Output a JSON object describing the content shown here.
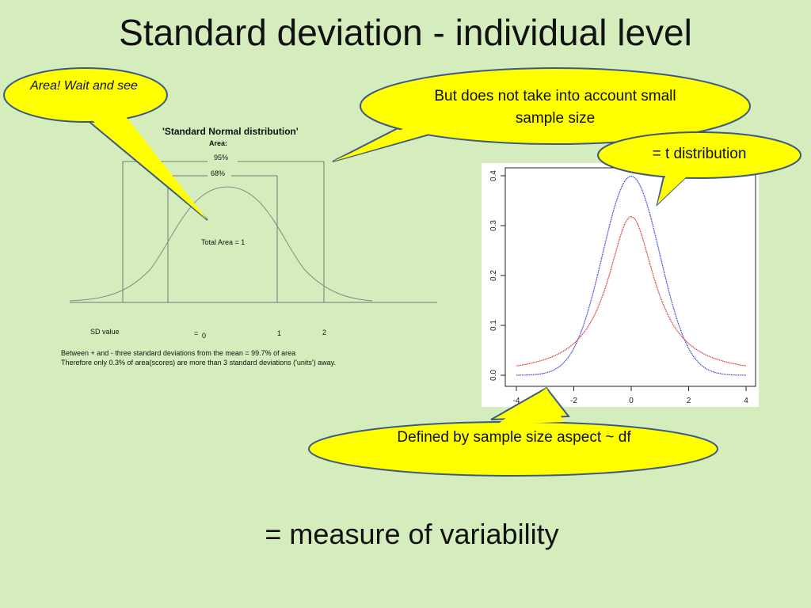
{
  "slide": {
    "title": "Standard deviation - individual level",
    "footer": "= measure of variability"
  },
  "callouts": {
    "area_wait": "Area! Wait and see",
    "small_sample": "But does not take into account small sample size",
    "t_dist": "= t distribution",
    "defined_by": "Defined by sample size aspect ~ df"
  },
  "normal_figure": {
    "title": "'Standard Normal distribution'",
    "area_label": "Area:",
    "pct_95": "95%",
    "pct_68": "68%",
    "total_area": "Total Area = 1",
    "sd_value_label": "SD value",
    "equals": "=",
    "tick_0": "0",
    "tick_1": "1",
    "tick_2": "2",
    "note_line1": "Between + and - three standard deviations from the mean  = 99.7% of area",
    "note_line2": "Therefore only 0.3% of area(scores) are more than 3 standard deviations ('units') away."
  },
  "chart_data": {
    "type": "line",
    "x_ticks": [
      "-4",
      "-2",
      "0",
      "2",
      "4"
    ],
    "y_ticks": [
      "0.0",
      "0.1",
      "0.2",
      "0.3",
      "0.4"
    ],
    "xlim": [
      -4,
      4
    ],
    "ylim": [
      0,
      0.4
    ],
    "series": [
      {
        "color": "#3344dd",
        "description_peak": 0.399,
        "x": [
          -4,
          -3,
          -2,
          -1.5,
          -1,
          -0.5,
          0,
          0.5,
          1,
          1.5,
          2,
          3,
          4
        ],
        "values": [
          0.0001,
          0.0044,
          0.054,
          0.1295,
          0.242,
          0.352,
          0.399,
          0.352,
          0.242,
          0.1295,
          0.054,
          0.0044,
          0.0001
        ]
      },
      {
        "color": "#dd3333",
        "description_peak": 0.318,
        "x": [
          -4,
          -3,
          -2,
          -1.5,
          -1,
          -0.5,
          0,
          0.5,
          1,
          1.5,
          2,
          3,
          4
        ],
        "values": [
          0.0187,
          0.0318,
          0.0637,
          0.098,
          0.159,
          0.255,
          0.318,
          0.255,
          0.159,
          0.098,
          0.0637,
          0.0318,
          0.0187
        ]
      }
    ]
  },
  "colors": {
    "background": "#d5ecbc",
    "callout_fill": "#ffff00",
    "callout_stroke": "#3d5a80"
  }
}
